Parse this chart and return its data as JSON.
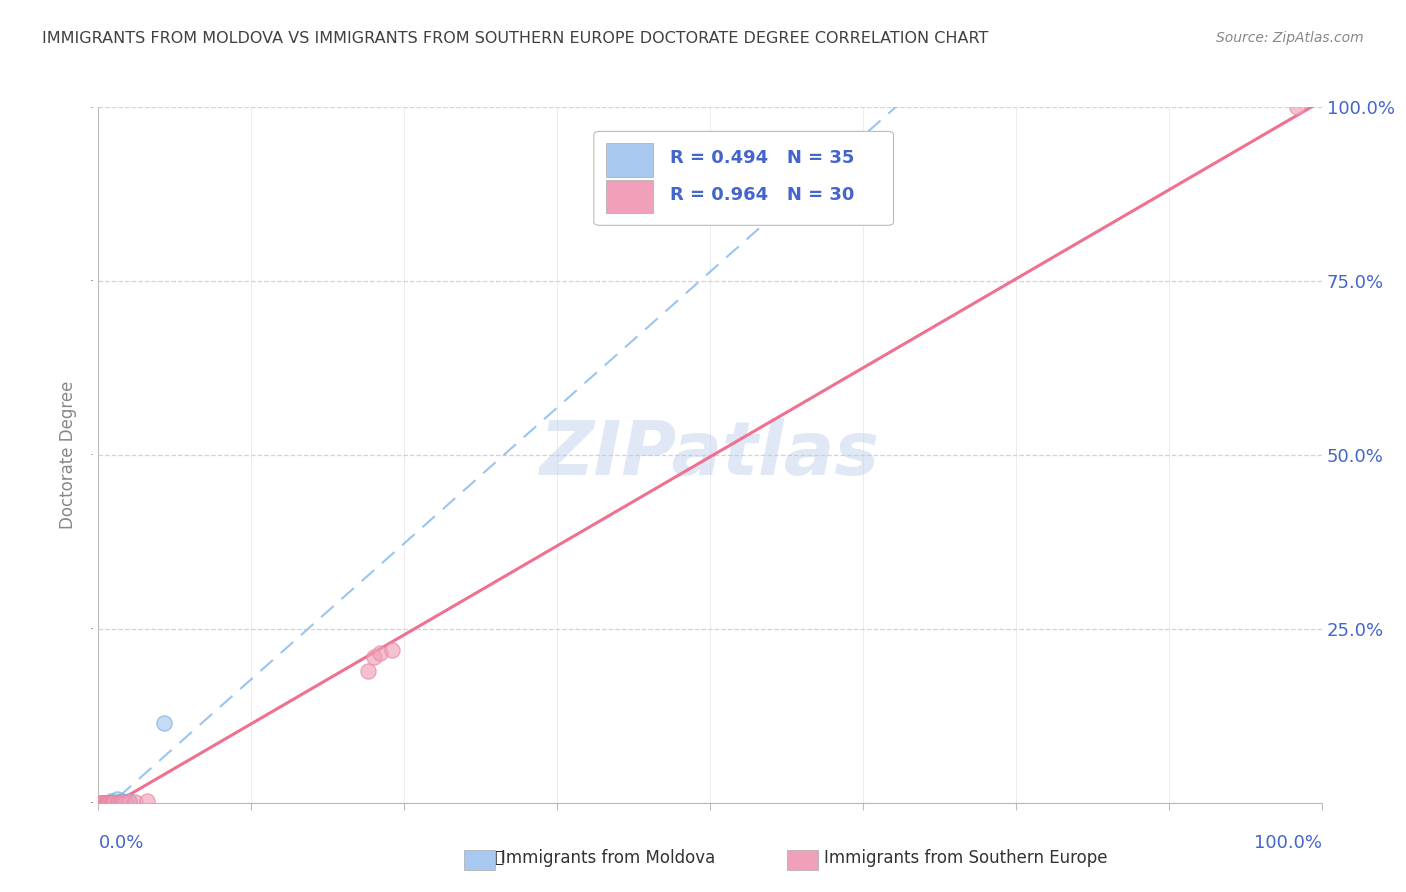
{
  "title": "IMMIGRANTS FROM MOLDOVA VS IMMIGRANTS FROM SOUTHERN EUROPE DOCTORATE DEGREE CORRELATION CHART",
  "source": "Source: ZipAtlas.com",
  "ylabel": "Doctorate Degree",
  "y_tick_positions": [
    0.0,
    0.25,
    0.5,
    0.75,
    1.0
  ],
  "y_tick_labels": [
    "",
    "25.0%",
    "50.0%",
    "75.0%",
    "100.0%"
  ],
  "x_tick_positions": [
    0.0,
    0.125,
    0.25,
    0.375,
    0.5,
    0.625,
    0.75,
    0.875,
    1.0
  ],
  "legend_line1": "R = 0.494   N = 35",
  "legend_line2": "R = 0.964   N = 30",
  "color_moldova": "#a8c8f0",
  "color_southern": "#f0a0b8",
  "color_moldova_scatter": "#7aacdf",
  "color_southern_scatter": "#e888a0",
  "color_moldova_line": "#88bbee",
  "color_southern_line": "#f07090",
  "watermark_text": "ZIPatlas",
  "background_color": "#ffffff",
  "grid_color": "#d0d0e8",
  "title_color": "#404040",
  "axis_label_color": "#4466cc",
  "moldova_line_slope": 0.494,
  "southern_line_slope": 0.964,
  "moldova_scatter_x": [
    0.002,
    0.003,
    0.004,
    0.005,
    0.005,
    0.006,
    0.006,
    0.007,
    0.007,
    0.008,
    0.008,
    0.009,
    0.009,
    0.01,
    0.01,
    0.01,
    0.011,
    0.012,
    0.012,
    0.013,
    0.014,
    0.015,
    0.015,
    0.015,
    0.016,
    0.018,
    0.018,
    0.019,
    0.02,
    0.02,
    0.021,
    0.022,
    0.025,
    0.025,
    0.054
  ],
  "moldova_scatter_y": [
    0.0,
    0.0,
    0.0,
    0.0,
    0.0,
    0.0,
    0.0,
    0.0,
    0.0,
    0.0,
    0.0,
    0.0,
    0.0,
    0.0,
    0.0,
    0.002,
    0.0,
    0.0,
    0.001,
    0.0,
    0.0,
    0.0,
    0.001,
    0.005,
    0.0,
    0.0,
    0.001,
    0.002,
    0.0,
    0.0,
    0.001,
    0.0,
    0.001,
    0.003,
    0.115
  ],
  "southern_scatter_x": [
    0.002,
    0.003,
    0.003,
    0.004,
    0.005,
    0.006,
    0.007,
    0.007,
    0.008,
    0.008,
    0.009,
    0.009,
    0.01,
    0.011,
    0.012,
    0.013,
    0.015,
    0.016,
    0.018,
    0.019,
    0.02,
    0.022,
    0.025,
    0.03,
    0.04,
    0.22,
    0.225,
    0.23,
    0.24,
    0.98
  ],
  "southern_scatter_y": [
    0.0,
    0.0,
    0.0,
    0.0,
    0.0,
    0.0,
    0.0,
    0.0,
    0.0,
    0.0,
    0.0,
    0.0,
    0.0,
    0.0,
    0.0,
    0.0,
    0.0,
    0.0,
    0.0,
    0.0,
    0.001,
    0.0,
    0.001,
    0.001,
    0.002,
    0.19,
    0.21,
    0.215,
    0.22,
    1.0
  ]
}
